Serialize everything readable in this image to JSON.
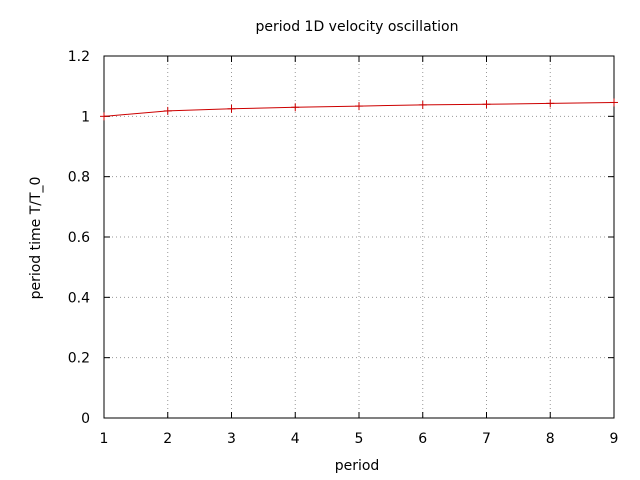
{
  "chart_data": {
    "type": "line",
    "title": "period 1D velocity oscillation",
    "xlabel": "period",
    "ylabel": "period time T/T_0",
    "xlim": [
      1,
      9
    ],
    "ylim": [
      0,
      1.2
    ],
    "x_ticks": [
      "1",
      "2",
      "3",
      "4",
      "5",
      "6",
      "7",
      "8",
      "9"
    ],
    "y_ticks": [
      "0",
      "0.2",
      "0.4",
      "0.6",
      "0.8",
      "1",
      "1.2"
    ],
    "grid": true,
    "series": [
      {
        "color": "#cc0000",
        "marker": "plus",
        "x": [
          1,
          2,
          3,
          4,
          5,
          6,
          7,
          8,
          9
        ],
        "y": [
          1.0,
          1.018,
          1.025,
          1.03,
          1.034,
          1.038,
          1.04,
          1.043,
          1.046
        ]
      }
    ]
  }
}
